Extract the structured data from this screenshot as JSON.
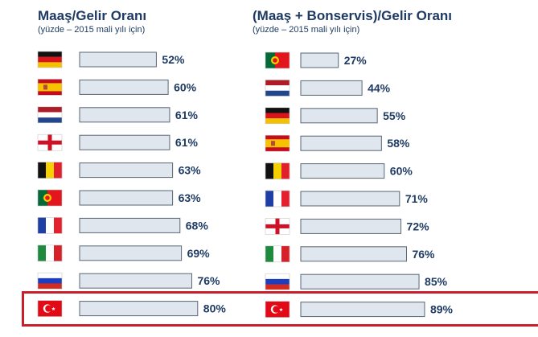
{
  "colors": {
    "title": "#1f3b63",
    "bar_fill": "#dfe6ee",
    "bar_stroke": "#5a6675",
    "value_text": "#1f3b63",
    "highlight_border": "#c8202a"
  },
  "chart_data": [
    {
      "type": "bar",
      "orientation": "horizontal",
      "title": "Maaş/Gelir Oranı",
      "subtitle": "(yüzde – 2015 mali yılı için)",
      "categories": [
        "Germany",
        "Spain",
        "Netherlands",
        "England",
        "Belgium",
        "Portugal",
        "France",
        "Italy",
        "Russia",
        "Turkey"
      ],
      "flag_icons": [
        "germany-flag-icon",
        "spain-flag-icon",
        "netherlands-flag-icon",
        "england-flag-icon",
        "belgium-flag-icon",
        "portugal-flag-icon",
        "france-flag-icon",
        "italy-flag-icon",
        "russia-flag-icon",
        "turkey-flag-icon"
      ],
      "values": [
        52,
        60,
        61,
        61,
        63,
        63,
        68,
        69,
        76,
        80
      ],
      "value_labels": [
        "52%",
        "60%",
        "61%",
        "61%",
        "63%",
        "63%",
        "68%",
        "69%",
        "76%",
        "80%"
      ],
      "highlighted": "Turkey"
    },
    {
      "type": "bar",
      "orientation": "horizontal",
      "title": "(Maaş + Bonservis)/Gelir Oranı",
      "subtitle": "(yüzde – 2015 mali yılı için)",
      "categories": [
        "Portugal",
        "Netherlands",
        "Germany",
        "Spain",
        "Belgium",
        "France",
        "England",
        "Italy",
        "Russia",
        "Turkey"
      ],
      "flag_icons": [
        "portugal-flag-icon",
        "netherlands-flag-icon",
        "germany-flag-icon",
        "spain-flag-icon",
        "belgium-flag-icon",
        "france-flag-icon",
        "england-flag-icon",
        "italy-flag-icon",
        "russia-flag-icon",
        "turkey-flag-icon"
      ],
      "values": [
        27,
        44,
        55,
        58,
        60,
        71,
        72,
        76,
        85,
        89
      ],
      "value_labels": [
        "27%",
        "44%",
        "55%",
        "58%",
        "60%",
        "71%",
        "72%",
        "76%",
        "85%",
        "89%"
      ],
      "highlighted": "Turkey"
    }
  ]
}
